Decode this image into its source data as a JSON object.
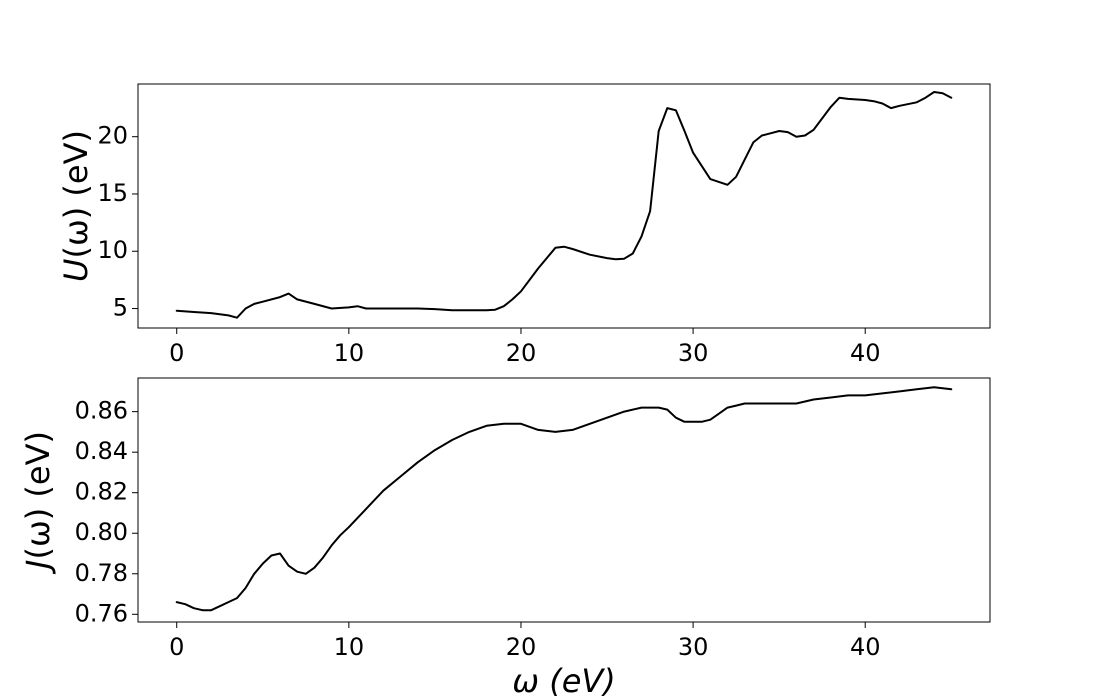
{
  "chart_data": [
    {
      "type": "line",
      "panel": "top",
      "xlabel": "",
      "ylabel": "U(ω) (eV)",
      "ylabel_parts": {
        "func": "U",
        "arg": "(ω) (eV)"
      },
      "xlim": [
        -2.25,
        47.25
      ],
      "ylim": [
        3.3,
        24.6
      ],
      "xticks": [
        0,
        10,
        20,
        30,
        40
      ],
      "yticks": [
        5,
        10,
        15,
        20
      ],
      "grid": false,
      "line_color": "#000000",
      "series": [
        {
          "x": [
            0,
            1,
            2,
            3,
            3.5,
            4,
            4.5,
            5,
            6,
            6.5,
            7,
            8,
            9,
            10,
            10.5,
            11,
            12,
            13,
            14,
            15,
            16,
            17,
            18,
            18.5,
            19,
            19.5,
            20,
            21,
            22,
            22.5,
            23,
            24,
            25,
            25.5,
            26,
            26.5,
            27,
            27.5,
            28,
            28.5,
            29,
            29.5,
            30,
            31,
            32,
            32.5,
            33,
            33.5,
            34,
            34.5,
            35,
            35.5,
            36,
            36.5,
            37,
            38,
            38.5,
            39,
            40,
            40.5,
            41,
            41.5,
            42,
            43,
            43.5,
            44,
            44.5,
            45
          ],
          "y": [
            4.8,
            4.7,
            4.6,
            4.4,
            4.2,
            5.0,
            5.4,
            5.6,
            6.0,
            6.3,
            5.8,
            5.4,
            5.0,
            5.1,
            5.2,
            5.0,
            5.0,
            5.0,
            5.0,
            4.95,
            4.85,
            4.85,
            4.85,
            4.9,
            5.2,
            5.8,
            6.5,
            8.5,
            10.3,
            10.4,
            10.2,
            9.7,
            9.4,
            9.3,
            9.35,
            9.8,
            11.3,
            13.5,
            20.5,
            22.5,
            22.3,
            20.5,
            18.6,
            16.3,
            15.8,
            16.5,
            18.0,
            19.5,
            20.1,
            20.3,
            20.5,
            20.4,
            20.0,
            20.1,
            20.6,
            22.6,
            23.4,
            23.3,
            23.2,
            23.1,
            22.9,
            22.5,
            22.7,
            23.0,
            23.4,
            23.9,
            23.8,
            23.4
          ]
        }
      ]
    },
    {
      "type": "line",
      "panel": "bottom",
      "xlabel": "ω (eV)",
      "ylabel": "J(ω) (eV)",
      "ylabel_parts": {
        "func": "J",
        "arg": "(ω) (eV)"
      },
      "xlim": [
        -2.25,
        47.25
      ],
      "ylim": [
        0.7562,
        0.8766
      ],
      "xticks": [
        0,
        10,
        20,
        30,
        40
      ],
      "yticks": [
        0.76,
        0.78,
        0.8,
        0.82,
        0.84,
        0.86
      ],
      "grid": false,
      "line_color": "#000000",
      "series": [
        {
          "x": [
            0,
            0.5,
            1,
            1.5,
            2,
            2.5,
            3,
            3.5,
            4,
            4.5,
            5,
            5.5,
            6,
            6.5,
            7,
            7.5,
            8,
            8.5,
            9,
            9.5,
            10,
            11,
            12,
            13,
            14,
            15,
            16,
            17,
            18,
            19,
            20,
            21,
            22,
            23,
            24,
            25,
            26,
            27,
            28,
            28.5,
            29,
            29.5,
            30,
            30.5,
            31,
            31.5,
            32,
            32.5,
            33,
            34,
            35,
            36,
            37,
            38,
            39,
            40,
            41,
            42,
            43,
            44,
            45
          ],
          "y": [
            0.766,
            0.765,
            0.763,
            0.762,
            0.762,
            0.764,
            0.766,
            0.768,
            0.773,
            0.78,
            0.785,
            0.789,
            0.79,
            0.784,
            0.781,
            0.78,
            0.783,
            0.788,
            0.794,
            0.799,
            0.803,
            0.812,
            0.821,
            0.828,
            0.835,
            0.841,
            0.846,
            0.85,
            0.853,
            0.854,
            0.854,
            0.851,
            0.85,
            0.851,
            0.854,
            0.857,
            0.86,
            0.862,
            0.862,
            0.861,
            0.857,
            0.855,
            0.855,
            0.855,
            0.856,
            0.859,
            0.862,
            0.863,
            0.864,
            0.864,
            0.864,
            0.864,
            0.866,
            0.867,
            0.868,
            0.868,
            0.869,
            0.87,
            0.871,
            0.872,
            0.871
          ]
        }
      ]
    }
  ]
}
